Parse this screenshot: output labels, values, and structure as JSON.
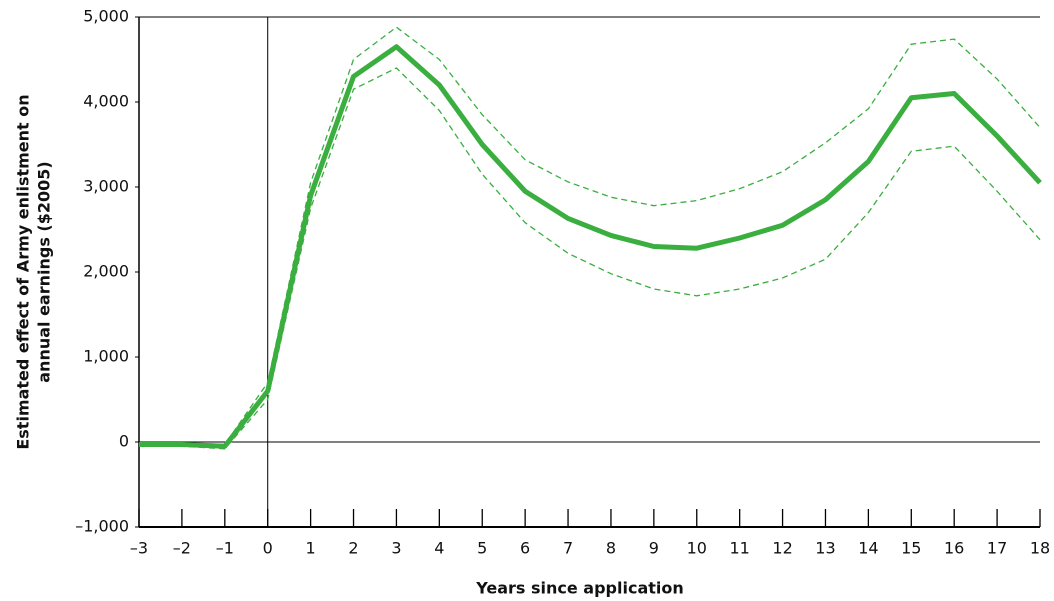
{
  "chart_data": {
    "type": "line",
    "ylabel": [
      "Estimated effect of Army enlistment on",
      "annual earnings ($2005)"
    ],
    "xlabel": "Years since application",
    "x": [
      -3,
      -2,
      -1,
      0,
      1,
      2,
      3,
      4,
      5,
      6,
      7,
      8,
      9,
      10,
      11,
      12,
      13,
      14,
      15,
      16,
      17,
      18
    ],
    "series": [
      {
        "color": "#3aae3f",
        "style": "solid",
        "values": [
          -30,
          -30,
          -50,
          600,
          2900,
          4300,
          4650,
          4200,
          3500,
          2950,
          2630,
          2430,
          2300,
          2280,
          2400,
          2550,
          2850,
          3300,
          4050,
          4100,
          3600,
          3050
        ]
      },
      {
        "color": "#3aae3f",
        "style": "dashed",
        "values": [
          -10,
          -10,
          -30,
          700,
          3050,
          4500,
          4880,
          4500,
          3850,
          3320,
          3060,
          2880,
          2780,
          2840,
          2980,
          3180,
          3520,
          3920,
          4680,
          4740,
          4270,
          3700
        ]
      },
      {
        "color": "#3aae3f",
        "style": "dashed",
        "values": [
          -50,
          -50,
          -80,
          500,
          2750,
          4150,
          4400,
          3900,
          3150,
          2580,
          2220,
          1980,
          1800,
          1720,
          1800,
          1930,
          2150,
          2700,
          3420,
          3480,
          2950,
          2380
        ]
      }
    ],
    "xlim": [
      -3,
      18
    ],
    "xticks": [
      {
        "value": -3,
        "label": "–3"
      },
      {
        "value": -2,
        "label": "–2"
      },
      {
        "value": -1,
        "label": "–1"
      },
      0,
      1,
      2,
      3,
      4,
      5,
      6,
      7,
      8,
      9,
      10,
      11,
      12,
      13,
      14,
      15,
      16,
      17,
      18
    ],
    "ylim": [
      -1000,
      5000
    ],
    "yticks": [
      {
        "value": -1000,
        "label": "–1,000"
      },
      0,
      {
        "value": 1000,
        "label": "1,000"
      },
      {
        "value": 2000,
        "label": "2,000"
      },
      {
        "value": 3000,
        "label": "3,000"
      },
      {
        "value": 4000,
        "label": "4,000"
      },
      {
        "value": 5000,
        "label": "5,000"
      }
    ]
  }
}
